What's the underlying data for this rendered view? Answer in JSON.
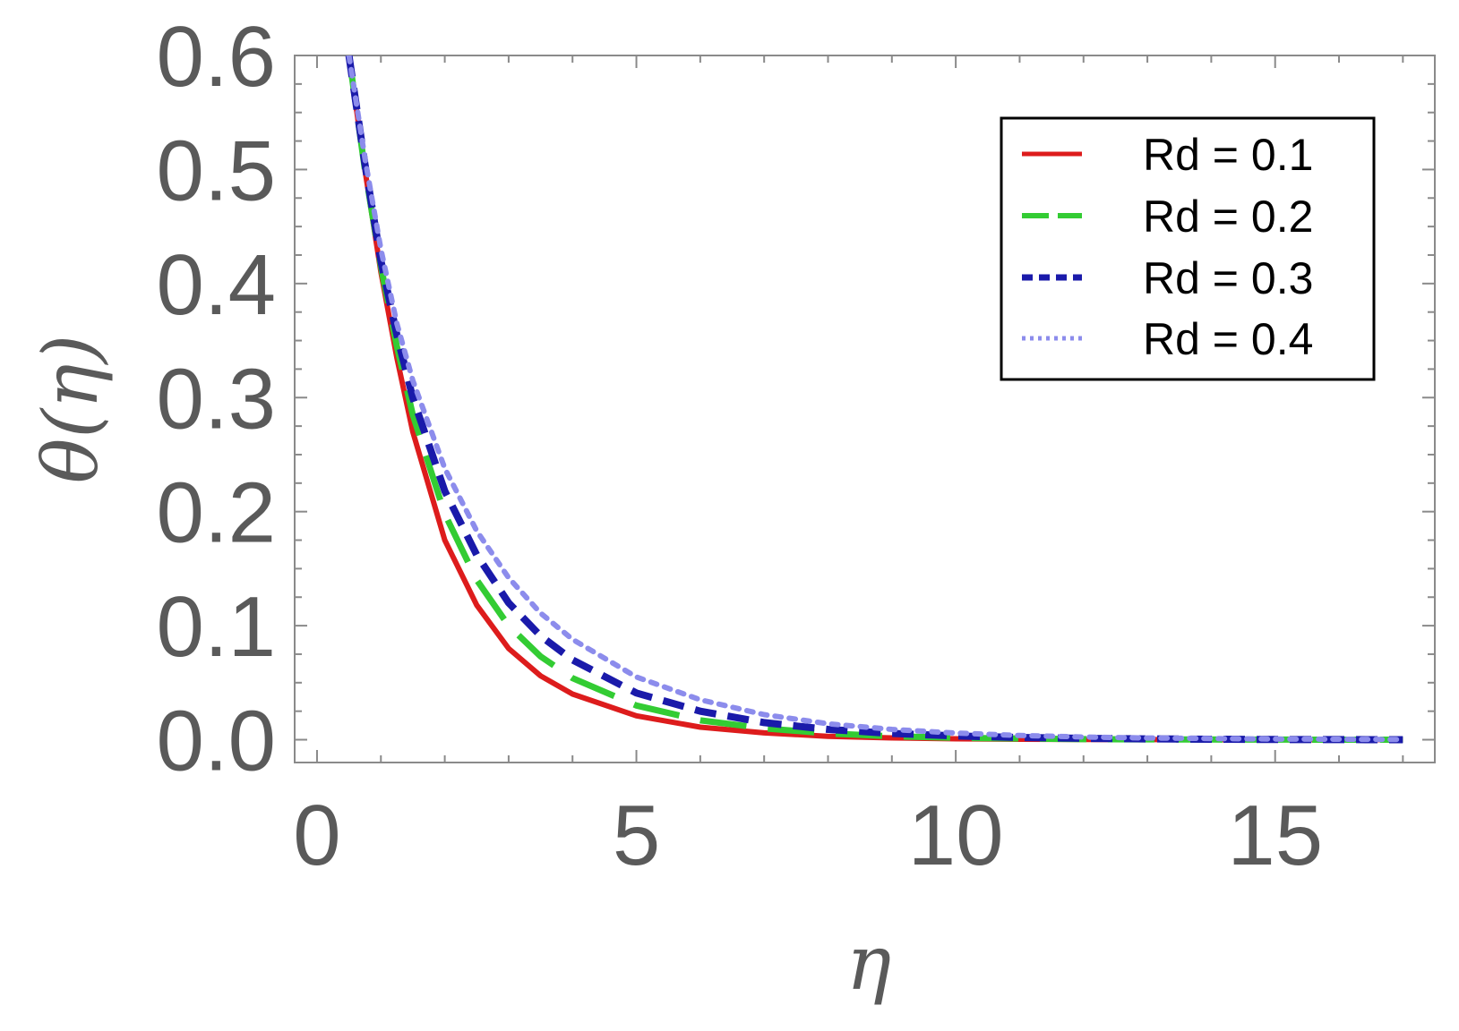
{
  "chart_data": {
    "type": "line",
    "title": "",
    "xlabel": "η",
    "ylabel": "θ(η)",
    "xlim": [
      -0.35,
      17.5
    ],
    "ylim": [
      -0.02,
      0.6
    ],
    "xticks": [
      0,
      5,
      10,
      15
    ],
    "xtick_labels": [
      "0",
      "5",
      "10",
      "15"
    ],
    "yticks": [
      0.0,
      0.1,
      0.2,
      0.3,
      0.4,
      0.5,
      0.6
    ],
    "ytick_labels": [
      "0.0",
      "0.1",
      "0.2",
      "0.3",
      "0.4",
      "0.5",
      "0.6"
    ],
    "grid": false,
    "legend_position": "top-right",
    "x": [
      0.5,
      0.75,
      1.0,
      1.25,
      1.5,
      2.0,
      2.5,
      3.0,
      3.5,
      4.0,
      5.0,
      6.0,
      7.0,
      8.0,
      9.0,
      10.0,
      11.0,
      12.0,
      13.0,
      14.0,
      15.0,
      16.0,
      17.0
    ],
    "series": [
      {
        "name": "Rd = 0.1",
        "color": "#dd1c1c",
        "dash": "solid",
        "values": [
          0.6,
          0.5,
          0.41,
          0.335,
          0.27,
          0.175,
          0.118,
          0.08,
          0.056,
          0.04,
          0.021,
          0.011,
          0.006,
          0.003,
          0.0016,
          0.0008,
          0.0004,
          0.0002,
          0.0001,
          0.0,
          0.0,
          0.0,
          0.0
        ]
      },
      {
        "name": "Rd = 0.2",
        "color": "#33cc33",
        "dash": "long-dash",
        "values": [
          0.6,
          0.5,
          0.415,
          0.345,
          0.285,
          0.198,
          0.14,
          0.1,
          0.073,
          0.054,
          0.03,
          0.017,
          0.01,
          0.0055,
          0.003,
          0.0017,
          0.001,
          0.0005,
          0.0003,
          0.0002,
          0.0001,
          0.0,
          0.0
        ]
      },
      {
        "name": "Rd = 0.3",
        "color": "#1a1aaa",
        "dash": "dashed",
        "values": [
          0.6,
          0.505,
          0.42,
          0.355,
          0.3,
          0.218,
          0.162,
          0.12,
          0.091,
          0.07,
          0.041,
          0.025,
          0.015,
          0.009,
          0.0055,
          0.0033,
          0.002,
          0.0012,
          0.0007,
          0.0004,
          0.0002,
          0.0001,
          0.0
        ]
      },
      {
        "name": "Rd = 0.4",
        "color": "#8c8cec",
        "dash": "dotted",
        "values": [
          0.6,
          0.51,
          0.43,
          0.365,
          0.315,
          0.238,
          0.183,
          0.142,
          0.111,
          0.088,
          0.055,
          0.035,
          0.022,
          0.014,
          0.009,
          0.0058,
          0.0037,
          0.0024,
          0.0015,
          0.001,
          0.0006,
          0.0004,
          0.0002
        ]
      }
    ]
  }
}
